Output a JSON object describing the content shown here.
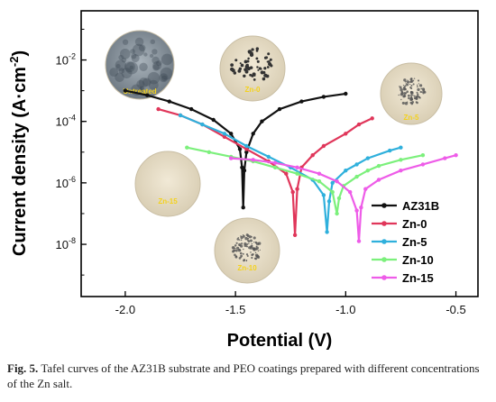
{
  "chart_data": {
    "type": "line",
    "xlabel": "Potential (V)",
    "ylabel": "Current density (A·cm",
    "ylabel_sup": "-2",
    "ylabel_close": ")",
    "xlim": [
      -2.2,
      -0.4
    ],
    "ylim_exp": [
      -9.7,
      -0.4
    ],
    "y_scale": "log",
    "grid": false,
    "legend_position": "right",
    "x_ticks": [
      -2.0,
      -1.5,
      -1.0,
      -0.5
    ],
    "x_tick_labels": [
      "-2.0",
      "-1.5",
      "-1.0",
      "-0.5"
    ],
    "y_ticks": [
      -8,
      -6,
      -4,
      -2
    ],
    "y_tick_labels": [
      {
        "base": "10",
        "exp": "-8"
      },
      {
        "base": "10",
        "exp": "-6"
      },
      {
        "base": "10",
        "exp": "-4"
      },
      {
        "base": "10",
        "exp": "-2"
      }
    ],
    "series": [
      {
        "name": "AZ31B",
        "color": "#111111",
        "x": [
          -2.0,
          -1.9,
          -1.8,
          -1.7,
          -1.6,
          -1.52,
          -1.48,
          -1.47,
          -1.465,
          -1.46,
          -1.45,
          -1.42,
          -1.38,
          -1.3,
          -1.2,
          -1.1,
          -1.0
        ],
        "exp": [
          -3.0,
          -3.15,
          -3.35,
          -3.6,
          -3.95,
          -4.4,
          -4.9,
          -5.5,
          -6.8,
          -5.6,
          -5.0,
          -4.4,
          -4.0,
          -3.6,
          -3.35,
          -3.2,
          -3.1
        ]
      },
      {
        "name": "Zn-0",
        "color": "#e0365a",
        "x": [
          -1.85,
          -1.75,
          -1.65,
          -1.55,
          -1.45,
          -1.35,
          -1.27,
          -1.24,
          -1.23,
          -1.22,
          -1.2,
          -1.15,
          -1.1,
          -1.0,
          -0.94,
          -0.88
        ],
        "exp": [
          -3.6,
          -3.8,
          -4.1,
          -4.5,
          -4.9,
          -5.3,
          -5.7,
          -6.3,
          -7.7,
          -6.2,
          -5.5,
          -5.1,
          -4.8,
          -4.4,
          -4.1,
          -3.9
        ]
      },
      {
        "name": "Zn-5",
        "color": "#2fb0dc",
        "x": [
          -1.75,
          -1.65,
          -1.55,
          -1.45,
          -1.35,
          -1.25,
          -1.15,
          -1.1,
          -1.085,
          -1.075,
          -1.06,
          -1.0,
          -0.95,
          -0.9,
          -0.8,
          -0.75
        ],
        "exp": [
          -3.8,
          -4.1,
          -4.4,
          -4.8,
          -5.15,
          -5.5,
          -5.9,
          -6.4,
          -7.6,
          -6.6,
          -6.0,
          -5.6,
          -5.4,
          -5.2,
          -4.95,
          -4.85
        ]
      },
      {
        "name": "Zn-10",
        "color": "#7cf07c",
        "x": [
          -1.72,
          -1.62,
          -1.52,
          -1.42,
          -1.32,
          -1.22,
          -1.12,
          -1.06,
          -1.04,
          -1.03,
          -1.01,
          -0.95,
          -0.9,
          -0.85,
          -0.75,
          -0.65
        ],
        "exp": [
          -4.85,
          -5.0,
          -5.15,
          -5.3,
          -5.5,
          -5.7,
          -5.95,
          -6.3,
          -7.0,
          -6.5,
          -6.1,
          -5.8,
          -5.6,
          -5.45,
          -5.25,
          -5.1
        ]
      },
      {
        "name": "Zn-15",
        "color": "#ee5ce8",
        "x": [
          -1.52,
          -1.42,
          -1.32,
          -1.22,
          -1.12,
          -1.04,
          -0.98,
          -0.95,
          -0.94,
          -0.93,
          -0.91,
          -0.85,
          -0.75,
          -0.65,
          -0.55,
          -0.5
        ],
        "exp": [
          -5.2,
          -5.25,
          -5.35,
          -5.5,
          -5.7,
          -5.95,
          -6.3,
          -6.9,
          -7.9,
          -6.8,
          -6.2,
          -5.9,
          -5.6,
          -5.4,
          -5.2,
          -5.1
        ]
      }
    ],
    "insets": [
      {
        "label": "Untreated",
        "bg": "#8a95a0",
        "spots": "#3a4550"
      },
      {
        "label": "Zn-0",
        "bg": "#e6dcc4",
        "spots": "#333333"
      },
      {
        "label": "Zn-5",
        "bg": "#e8dec6",
        "spots": "#555555"
      },
      {
        "label": "Zn-15",
        "bg": "#ece4cf",
        "spots": ""
      },
      {
        "label": "Zn-10",
        "bg": "#e6dcc4",
        "spots": "#555555"
      }
    ]
  },
  "caption": {
    "label": "Fig. 5.",
    "text": "Tafel curves of the AZ31B substrate and PEO coatings prepared with different concentrations of the Zn salt."
  }
}
